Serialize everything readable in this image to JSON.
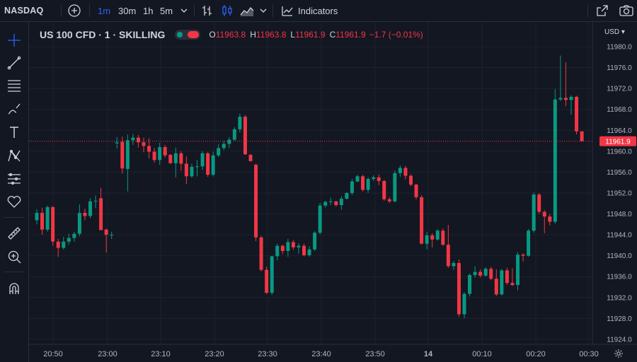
{
  "toolbar": {
    "symbol": "NASDAQ",
    "intervals": [
      {
        "label": "1m",
        "active": true
      },
      {
        "label": "30m",
        "active": false
      },
      {
        "label": "1h",
        "active": false
      },
      {
        "label": "5m",
        "active": false
      }
    ],
    "indicators_label": "Indicators",
    "icons": [
      "add-symbol-icon",
      "interval-dropdown-icon",
      "bar-style-icon",
      "candle-style-icon",
      "area-style-icon",
      "style-dropdown-icon",
      "indicators-icon",
      "snapshot-expand-icon",
      "camera-icon"
    ]
  },
  "left_tools": [
    "crosshair-icon",
    "trend-line-icon",
    "fib-lines-icon",
    "brush-icon",
    "text-icon",
    "pattern-icon",
    "prediction-icon",
    "heart-icon",
    "ruler-icon",
    "zoom-in-icon",
    "magnet-icon"
  ],
  "legend": {
    "title": "US 100 CFD · 1 · SKILLING",
    "o_label": "O",
    "o_value": "11963.8",
    "h_label": "H",
    "h_value": "11963.8",
    "l_label": "L",
    "l_value": "11961.9",
    "c_label": "C",
    "c_value": "11961.9",
    "change": "−1.7 (−0.01%)"
  },
  "currency": "USD",
  "colors": {
    "up": "#089981",
    "down": "#f23645",
    "background": "#131722",
    "grid": "#1e222d",
    "accent": "#2962ff"
  },
  "chart_data": {
    "type": "candlestick",
    "y_ticks": [
      "11980.0",
      "11976.0",
      "11972.0",
      "11968.0",
      "11964.0",
      "11960.0",
      "11956.0",
      "11952.0",
      "11948.0",
      "11944.0",
      "11940.0",
      "11936.0",
      "11932.0",
      "11928.0",
      "11924.0"
    ],
    "x_ticks": [
      "20:50",
      "23:00",
      "23:10",
      "23:20",
      "23:30",
      "23:40",
      "23:50",
      "14",
      "00:10",
      "00:20",
      "00:30"
    ],
    "last_price": 11961.9,
    "last_price_label": "11961.9",
    "candles": [
      [
        11946.8,
        11948.9,
        11946.0,
        11948.2
      ],
      [
        11948.2,
        11949.2,
        11944.0,
        11945.0
      ],
      [
        11945.0,
        11949.6,
        11944.6,
        11949.3
      ],
      [
        11949.3,
        11949.5,
        11941.9,
        11942.7
      ],
      [
        11942.7,
        11943.2,
        11939.8,
        11941.5
      ],
      [
        11941.5,
        11943.6,
        11941.2,
        11942.7
      ],
      [
        11942.7,
        11944.2,
        11942.1,
        11943.4
      ],
      [
        11943.4,
        11944.6,
        11942.7,
        11944.2
      ],
      [
        11944.2,
        11949.8,
        11943.7,
        11948.2
      ],
      [
        11948.2,
        11949.0,
        11946.8,
        11947.6
      ],
      [
        11947.6,
        11951.0,
        11947.2,
        11950.4
      ],
      [
        11950.4,
        11951.5,
        11949.1,
        11950.5
      ],
      [
        11951.0,
        11953.0,
        11944.9,
        11944.9
      ],
      [
        11945.0,
        11945.2,
        11940.6,
        11944.0
      ],
      [
        11944.0,
        11944.6,
        11943.2,
        11944.0
      ],
      [
        11961.5,
        11962.7,
        11960.5,
        11961.7
      ],
      [
        11961.8,
        11962.8,
        11955.7,
        11956.7
      ],
      [
        11956.6,
        11963.2,
        11952.3,
        11962.1
      ],
      [
        11962.1,
        11963.3,
        11961.2,
        11962.6
      ],
      [
        11962.6,
        11963.1,
        11960.7,
        11961.7
      ],
      [
        11961.7,
        11962.6,
        11959.8,
        11961.0
      ],
      [
        11961.0,
        11962.5,
        11958.6,
        11959.9
      ],
      [
        11959.9,
        11960.6,
        11957.8,
        11958.3
      ],
      [
        11958.3,
        11961.6,
        11957.4,
        11960.8
      ],
      [
        11960.8,
        11961.2,
        11958.8,
        11959.2
      ],
      [
        11959.3,
        11959.5,
        11957.6,
        11957.7
      ],
      [
        11957.7,
        11960.7,
        11955.0,
        11959.6
      ],
      [
        11959.6,
        11960.0,
        11956.3,
        11957.6
      ],
      [
        11957.6,
        11959.0,
        11953.7,
        11955.2
      ],
      [
        11955.2,
        11957.6,
        11954.9,
        11957.0
      ],
      [
        11957.0,
        11958.3,
        11955.2,
        11957.1
      ],
      [
        11957.1,
        11960.0,
        11956.4,
        11959.6
      ],
      [
        11959.6,
        11959.8,
        11955.1,
        11955.5
      ],
      [
        11955.5,
        11959.9,
        11955.2,
        11959.2
      ],
      [
        11959.2,
        11961.3,
        11958.9,
        11960.6
      ],
      [
        11960.6,
        11962.0,
        11960.2,
        11961.4
      ],
      [
        11961.4,
        11962.7,
        11960.6,
        11962.2
      ],
      [
        11962.2,
        11964.6,
        11962.0,
        11964.2
      ],
      [
        11964.2,
        11967.2,
        11963.6,
        11966.6
      ],
      [
        11966.6,
        11966.9,
        11959.3,
        11959.4
      ],
      [
        11959.3,
        11959.5,
        11958.0,
        11958.1
      ],
      [
        11957.4,
        11957.6,
        11942.8,
        11943.5
      ],
      [
        11943.5,
        11943.8,
        11937.0,
        11937.3
      ],
      [
        11937.3,
        11937.9,
        11932.7,
        11932.9
      ],
      [
        11932.9,
        11940.0,
        11932.5,
        11939.9
      ],
      [
        11939.9,
        11942.3,
        11939.1,
        11941.9
      ],
      [
        11941.9,
        11942.1,
        11940.3,
        11940.9
      ],
      [
        11940.9,
        11943.2,
        11939.8,
        11942.6
      ],
      [
        11942.6,
        11943.0,
        11941.1,
        11941.6
      ],
      [
        11941.6,
        11942.4,
        11940.4,
        11941.9
      ],
      [
        11941.9,
        11942.3,
        11939.9,
        11940.1
      ],
      [
        11940.1,
        11941.8,
        11939.8,
        11941.2
      ],
      [
        11941.2,
        11944.7,
        11940.9,
        11944.4
      ],
      [
        11944.4,
        11950.1,
        11944.1,
        11949.6
      ],
      [
        11949.6,
        11950.5,
        11949.2,
        11950.3
      ],
      [
        11950.3,
        11951.1,
        11949.7,
        11950.4
      ],
      [
        11950.4,
        11950.5,
        11949.4,
        11949.7
      ],
      [
        11949.7,
        11951.4,
        11948.8,
        11950.9
      ],
      [
        11950.9,
        11952.2,
        11950.8,
        11952.0
      ],
      [
        11952.0,
        11954.7,
        11951.6,
        11954.2
      ],
      [
        11954.2,
        11955.5,
        11954.1,
        11955.2
      ],
      [
        11955.2,
        11955.5,
        11952.3,
        11952.6
      ],
      [
        11952.6,
        11955.0,
        11952.0,
        11954.7
      ],
      [
        11954.7,
        11955.4,
        11954.3,
        11955.0
      ],
      [
        11955.0,
        11955.6,
        11953.5,
        11954.3
      ],
      [
        11954.3,
        11954.5,
        11950.5,
        11950.8
      ],
      [
        11950.8,
        11951.2,
        11950.1,
        11950.4
      ],
      [
        11950.4,
        11956.3,
        11950.2,
        11955.8
      ],
      [
        11955.8,
        11957.3,
        11955.1,
        11956.8
      ],
      [
        11956.8,
        11957.2,
        11954.6,
        11955.3
      ],
      [
        11955.3,
        11955.6,
        11953.3,
        11953.6
      ],
      [
        11953.6,
        11953.8,
        11950.8,
        11951.2
      ],
      [
        11951.2,
        11951.6,
        11942.1,
        11942.3
      ],
      [
        11942.3,
        11944.6,
        11941.2,
        11943.9
      ],
      [
        11943.9,
        11944.3,
        11941.6,
        11943.1
      ],
      [
        11943.1,
        11945.1,
        11942.9,
        11944.8
      ],
      [
        11944.8,
        11945.2,
        11941.9,
        11942.1
      ],
      [
        11942.1,
        11945.9,
        11937.7,
        11938.0
      ],
      [
        11938.0,
        11939.0,
        11937.3,
        11938.6
      ],
      [
        11938.6,
        11939.3,
        11928.3,
        11928.8
      ],
      [
        11928.8,
        11933.0,
        11928.0,
        11932.7
      ],
      [
        11932.7,
        11936.6,
        11932.2,
        11936.3
      ],
      [
        11936.3,
        11938.0,
        11935.8,
        11936.9
      ],
      [
        11936.9,
        11937.4,
        11935.8,
        11936.2
      ],
      [
        11936.2,
        11937.8,
        11936.0,
        11937.5
      ],
      [
        11937.5,
        11937.9,
        11935.3,
        11935.6
      ],
      [
        11935.6,
        11937.4,
        11932.3,
        11932.6
      ],
      [
        11932.6,
        11937.5,
        11932.4,
        11937.2
      ],
      [
        11937.2,
        11937.7,
        11934.4,
        11934.8
      ],
      [
        11934.8,
        11937.6,
        11934.2,
        11934.4
      ],
      [
        11934.4,
        11940.7,
        11933.4,
        11940.2
      ],
      [
        11940.2,
        11940.5,
        11938.9,
        11940.0
      ],
      [
        11940.0,
        11945.1,
        11939.8,
        11944.8
      ],
      [
        11944.8,
        11952.1,
        11944.4,
        11951.7
      ],
      [
        11951.7,
        11952.0,
        11948.0,
        11948.4
      ],
      [
        11948.4,
        11948.7,
        11944.3,
        11947.5
      ],
      [
        11947.5,
        11948.0,
        11945.8,
        11946.5
      ],
      [
        11946.5,
        11971.9,
        11946.1,
        11969.9
      ],
      [
        11969.9,
        11978.3,
        11969.6,
        11970.2
      ],
      [
        11970.2,
        11977.0,
        11968.6,
        11969.8
      ],
      [
        11969.8,
        11970.7,
        11967.0,
        11970.4
      ],
      [
        11970.4,
        11970.6,
        11963.2,
        11963.8
      ],
      [
        11963.8,
        11963.8,
        11961.9,
        11961.9
      ]
    ]
  }
}
